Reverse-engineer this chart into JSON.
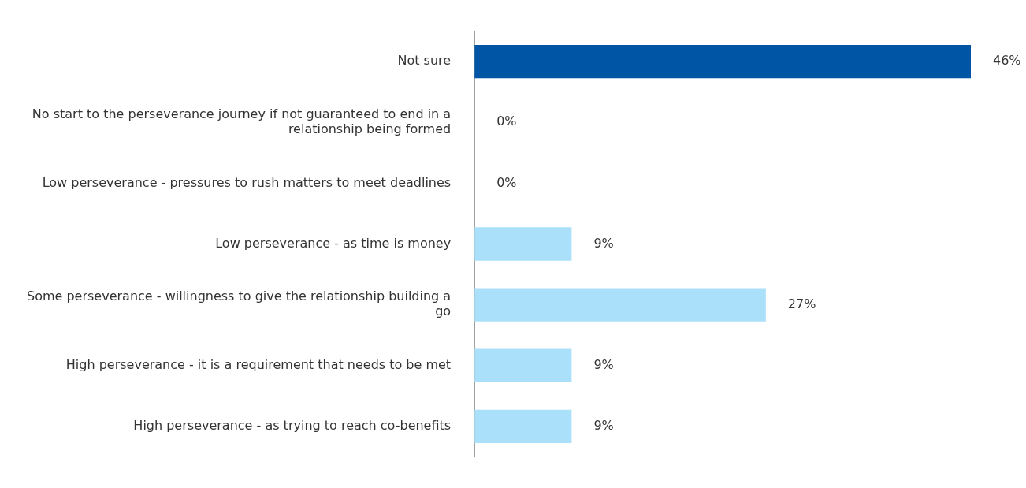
{
  "chart_data": {
    "type": "bar",
    "orientation": "horizontal",
    "categories": [
      "Not sure",
      "No start to the perseverance journey if not guaranteed to end in a relationship being formed",
      "Low perseverance - pressures to rush matters to meet deadlines",
      "Low perseverance - as time is money",
      "Some perseverance - willingness to give the relationship building a go",
      "High perseverance - it is a requirement that needs to be met",
      "High perseverance - as trying to reach co-benefits"
    ],
    "values": [
      46,
      0,
      0,
      9,
      27,
      9,
      9
    ],
    "colors": [
      "#0055a5",
      "#abe0fa",
      "#abe0fa",
      "#abe0fa",
      "#abe0fa",
      "#abe0fa",
      "#abe0fa"
    ],
    "value_labels": [
      "46%",
      "0%",
      "0%",
      "9%",
      "27%",
      "9%",
      "9%"
    ],
    "xlim": [
      0,
      46
    ],
    "tick_labels": "y",
    "legend": false
  }
}
